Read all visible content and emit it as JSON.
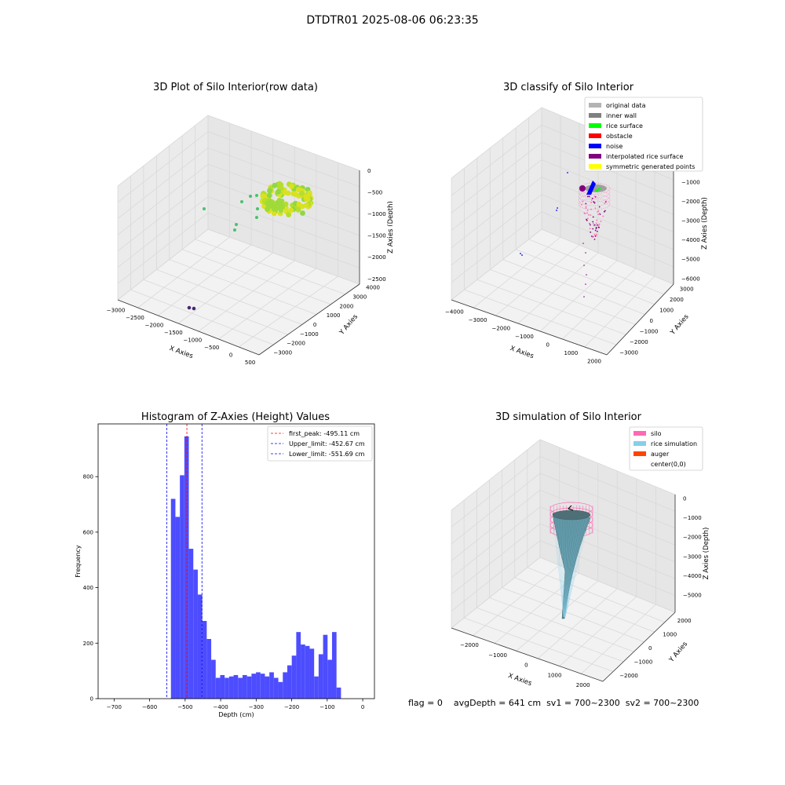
{
  "suptitle": "DTDTR01 2025-08-06 06:23:35",
  "footer": {
    "flag": "flag = 0",
    "avg_depth": "avgDepth = 641 cm",
    "sv1": "sv1 = 700~2300",
    "sv2": "sv2 = 700~2300"
  },
  "colors": {
    "hist_bar": "#4d4dff",
    "first_peak": "#ff0000",
    "limits": "#0000ff",
    "pane": "#f2f2f2",
    "grid": "#d9d9d9"
  },
  "chart_data": [
    {
      "type": "scatter",
      "projection": "3d",
      "title": "3D Plot of Silo Interior(row data)",
      "xlabel": "X Axies",
      "ylabel": "Y Axies",
      "zlabel": "Z Axies (Depth)",
      "xticks": [
        "−3000",
        "−2500",
        "−2000",
        "−1500",
        "−1000",
        "−500",
        "0",
        "500"
      ],
      "yticks": [
        "−3000",
        "−2000",
        "−1000",
        "0",
        "1000",
        "2000",
        "3000",
        "4000"
      ],
      "zticks": [
        "0",
        "−500",
        "−1000",
        "−1500",
        "−2000",
        "−2500"
      ],
      "colormap": "viridis"
    },
    {
      "type": "scatter",
      "projection": "3d",
      "title": "3D classify of Silo Interior",
      "xlabel": "X Axies",
      "ylabel": "Y Axies",
      "zlabel": "Z Axies (Depth)",
      "xticks": [
        "−4000",
        "−3000",
        "−2000",
        "−1000",
        "0",
        "1000",
        "2000"
      ],
      "yticks": [
        "−3000",
        "−2000",
        "−1000",
        "0",
        "1000",
        "2000",
        "3000"
      ],
      "zticks": [
        "0",
        "−1000",
        "−2000",
        "−3000",
        "−4000",
        "−5000",
        "−6000"
      ],
      "legend": [
        {
          "label": "original data",
          "color": "#b3b3b3"
        },
        {
          "label": "inner wall",
          "color": "#808080"
        },
        {
          "label": "rice surface",
          "color": "#00ff00"
        },
        {
          "label": "obstacle",
          "color": "#ff0000"
        },
        {
          "label": "noise",
          "color": "#0000ff"
        },
        {
          "label": "interpolated rice surface",
          "color": "#800080"
        },
        {
          "label": "symmetric generated points",
          "color": "#ffff00"
        }
      ],
      "legend_loc": "upper right"
    },
    {
      "type": "bar",
      "title": "Histogram of Z-Axies (Height) Values",
      "xlabel": "Depth (cm)",
      "ylabel": "Frequency",
      "xlim": [
        -745,
        33
      ],
      "ylim": [
        0,
        990
      ],
      "xticks": [
        -700,
        -600,
        -500,
        -400,
        -300,
        -200,
        -100,
        0
      ],
      "xticklabels": [
        "−700",
        "−600",
        "−500",
        "−400",
        "−300",
        "−200",
        "−100",
        "0"
      ],
      "yticks": [
        0,
        200,
        400,
        600,
        800
      ],
      "bin_start": -540,
      "bin_width": 12.6,
      "values": [
        720,
        655,
        805,
        945,
        540,
        465,
        375,
        280,
        215,
        140,
        75,
        85,
        75,
        80,
        85,
        75,
        85,
        80,
        90,
        95,
        90,
        80,
        95,
        75,
        60,
        95,
        120,
        155,
        240,
        195,
        190,
        180,
        80,
        160,
        230,
        140,
        240,
        40
      ],
      "lines": [
        {
          "label": "first_peak: -495.11 cm",
          "x": -495.11,
          "color": "#ff0000"
        },
        {
          "label": "Upper_limit: -452.67 cm",
          "x": -452.67,
          "color": "#0000ff"
        },
        {
          "label": "Lower_limit: -551.69 cm",
          "x": -551.69,
          "color": "#0000ff"
        }
      ],
      "legend_loc": "upper right"
    },
    {
      "type": "surface",
      "projection": "3d",
      "title": "3D simulation of Silo Interior",
      "xlabel": "X Axies",
      "ylabel": "Y Axies",
      "zlabel": "Z Axies (Depth)",
      "xticks": [
        "−2000",
        "−1000",
        "0",
        "1000",
        "2000"
      ],
      "yticks": [
        "−2000",
        "−1000",
        "0",
        "1000",
        "2000"
      ],
      "zticks": [
        "0",
        "−1000",
        "−2000",
        "−3000",
        "−4000",
        "−5000"
      ],
      "legend": [
        {
          "label": "silo",
          "color": "#ff69b4"
        },
        {
          "label": "rice simulation",
          "color": "#87ceeb"
        },
        {
          "label": "auger",
          "color": "#ff4500"
        },
        {
          "label": "center(0,0)",
          "color": ""
        }
      ],
      "legend_loc": "upper right"
    }
  ]
}
